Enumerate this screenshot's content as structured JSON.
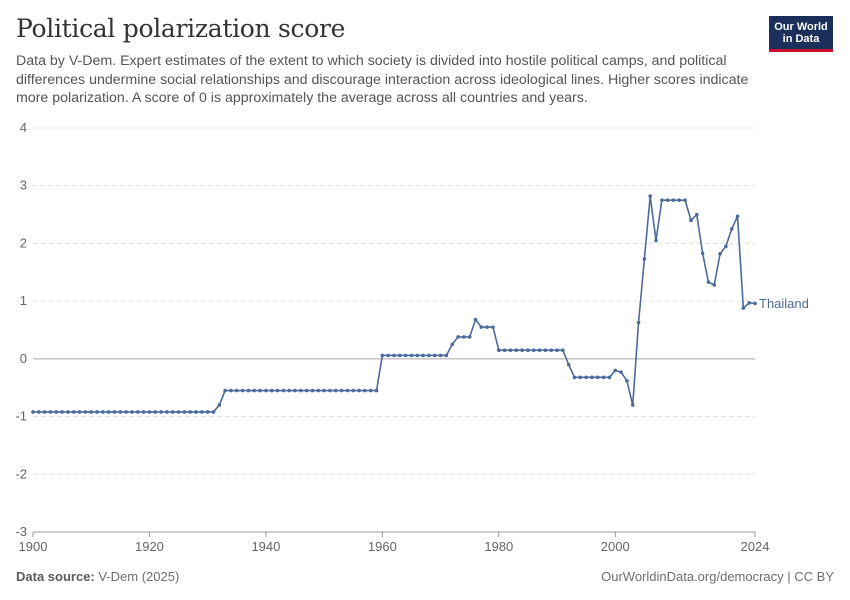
{
  "header": {
    "title": "Political polarization score",
    "subtitle": "Data by V-Dem. Expert estimates of the extent to which society is divided into hostile political camps, and political differences undermine social relationships and discourage interaction across ideological lines. Higher scores indicate more polarization. A score of 0 is approximately the average across all countries and years."
  },
  "logo": {
    "line1": "Our World",
    "line2": "in Data",
    "bg_color": "#1a2f5a",
    "accent_color": "#c8102e"
  },
  "footer": {
    "source_label": "Data source:",
    "source_value": "V-Dem (2025)",
    "url_text": "OurWorldinData.org/democracy | CC BY"
  },
  "chart_data": {
    "type": "line",
    "title": "Political polarization score",
    "xlabel": "",
    "ylabel": "",
    "xlim": [
      1900,
      2024
    ],
    "ylim": [
      -3,
      4
    ],
    "x_ticks": [
      1900,
      1920,
      1940,
      1960,
      1980,
      2000,
      2024
    ],
    "y_ticks": [
      -3,
      -2,
      -1,
      0,
      1,
      2,
      3,
      4
    ],
    "grid": "horizontal dashed",
    "series": [
      {
        "name": "Thailand",
        "color": "#4c6a9c",
        "points": [
          [
            1900,
            -0.92
          ],
          [
            1901,
            -0.92
          ],
          [
            1902,
            -0.92
          ],
          [
            1903,
            -0.92
          ],
          [
            1904,
            -0.92
          ],
          [
            1905,
            -0.92
          ],
          [
            1906,
            -0.92
          ],
          [
            1907,
            -0.92
          ],
          [
            1908,
            -0.92
          ],
          [
            1909,
            -0.92
          ],
          [
            1910,
            -0.92
          ],
          [
            1911,
            -0.92
          ],
          [
            1912,
            -0.92
          ],
          [
            1913,
            -0.92
          ],
          [
            1914,
            -0.92
          ],
          [
            1915,
            -0.92
          ],
          [
            1916,
            -0.92
          ],
          [
            1917,
            -0.92
          ],
          [
            1918,
            -0.92
          ],
          [
            1919,
            -0.92
          ],
          [
            1920,
            -0.92
          ],
          [
            1921,
            -0.92
          ],
          [
            1922,
            -0.92
          ],
          [
            1923,
            -0.92
          ],
          [
            1924,
            -0.92
          ],
          [
            1925,
            -0.92
          ],
          [
            1926,
            -0.92
          ],
          [
            1927,
            -0.92
          ],
          [
            1928,
            -0.92
          ],
          [
            1929,
            -0.92
          ],
          [
            1930,
            -0.92
          ],
          [
            1931,
            -0.92
          ],
          [
            1932,
            -0.8
          ],
          [
            1933,
            -0.55
          ],
          [
            1934,
            -0.55
          ],
          [
            1935,
            -0.55
          ],
          [
            1936,
            -0.55
          ],
          [
            1937,
            -0.55
          ],
          [
            1938,
            -0.55
          ],
          [
            1939,
            -0.55
          ],
          [
            1940,
            -0.55
          ],
          [
            1941,
            -0.55
          ],
          [
            1942,
            -0.55
          ],
          [
            1943,
            -0.55
          ],
          [
            1944,
            -0.55
          ],
          [
            1945,
            -0.55
          ],
          [
            1946,
            -0.55
          ],
          [
            1947,
            -0.55
          ],
          [
            1948,
            -0.55
          ],
          [
            1949,
            -0.55
          ],
          [
            1950,
            -0.55
          ],
          [
            1951,
            -0.55
          ],
          [
            1952,
            -0.55
          ],
          [
            1953,
            -0.55
          ],
          [
            1954,
            -0.55
          ],
          [
            1955,
            -0.55
          ],
          [
            1956,
            -0.55
          ],
          [
            1957,
            -0.55
          ],
          [
            1958,
            -0.55
          ],
          [
            1959,
            -0.55
          ],
          [
            1960,
            0.06
          ],
          [
            1961,
            0.06
          ],
          [
            1962,
            0.06
          ],
          [
            1963,
            0.06
          ],
          [
            1964,
            0.06
          ],
          [
            1965,
            0.06
          ],
          [
            1966,
            0.06
          ],
          [
            1967,
            0.06
          ],
          [
            1968,
            0.06
          ],
          [
            1969,
            0.06
          ],
          [
            1970,
            0.06
          ],
          [
            1971,
            0.06
          ],
          [
            1972,
            0.25
          ],
          [
            1973,
            0.38
          ],
          [
            1974,
            0.38
          ],
          [
            1975,
            0.38
          ],
          [
            1976,
            0.68
          ],
          [
            1977,
            0.55
          ],
          [
            1978,
            0.55
          ],
          [
            1979,
            0.55
          ],
          [
            1980,
            0.15
          ],
          [
            1981,
            0.15
          ],
          [
            1982,
            0.15
          ],
          [
            1983,
            0.15
          ],
          [
            1984,
            0.15
          ],
          [
            1985,
            0.15
          ],
          [
            1986,
            0.15
          ],
          [
            1987,
            0.15
          ],
          [
            1988,
            0.15
          ],
          [
            1989,
            0.15
          ],
          [
            1990,
            0.15
          ],
          [
            1991,
            0.15
          ],
          [
            1992,
            -0.1
          ],
          [
            1993,
            -0.32
          ],
          [
            1994,
            -0.32
          ],
          [
            1995,
            -0.32
          ],
          [
            1996,
            -0.32
          ],
          [
            1997,
            -0.32
          ],
          [
            1998,
            -0.32
          ],
          [
            1999,
            -0.32
          ],
          [
            2000,
            -0.2
          ],
          [
            2001,
            -0.23
          ],
          [
            2002,
            -0.38
          ],
          [
            2003,
            -0.8
          ],
          [
            2004,
            0.63
          ],
          [
            2005,
            1.73
          ],
          [
            2006,
            2.82
          ],
          [
            2007,
            2.05
          ],
          [
            2008,
            2.75
          ],
          [
            2009,
            2.75
          ],
          [
            2010,
            2.75
          ],
          [
            2011,
            2.75
          ],
          [
            2012,
            2.75
          ],
          [
            2013,
            2.4
          ],
          [
            2014,
            2.5
          ],
          [
            2015,
            1.83
          ],
          [
            2016,
            1.33
          ],
          [
            2017,
            1.28
          ],
          [
            2018,
            1.82
          ],
          [
            2019,
            1.95
          ],
          [
            2020,
            2.25
          ],
          [
            2021,
            2.47
          ],
          [
            2022,
            0.88
          ],
          [
            2023,
            0.97
          ],
          [
            2024,
            0.96
          ]
        ]
      }
    ]
  }
}
